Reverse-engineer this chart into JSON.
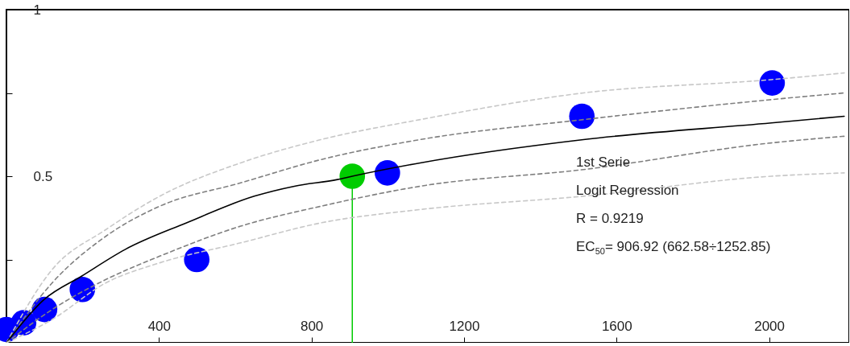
{
  "chart_data": {
    "type": "line",
    "xlim": [
      0,
      2210
    ],
    "xticks": [
      400,
      800,
      1200,
      1600,
      2000
    ],
    "ylim": [
      0,
      1
    ],
    "yticks": [
      {
        "value": 0.25,
        "label": null
      },
      0.5,
      {
        "value": 0.75,
        "label": null
      },
      1
    ],
    "grid": false,
    "annotations": [
      "1st Serie",
      "Logit Regression",
      "R = 0.9219",
      "EC$_{50}$= 906.92 (662.58÷1252.85)"
    ],
    "series": [
      {
        "type": "scatter",
        "marker": "circle",
        "color": "#0000ff",
        "x": [
          0,
          45,
          100,
          199,
          499,
          999,
          1509,
          2008
        ],
        "values": [
          0.04,
          0.06,
          0.1,
          0.16,
          0.25,
          0.51,
          0.68,
          0.78
        ]
      },
      {
        "type": "lollipop",
        "marker": "circle",
        "color": "#00cc00",
        "x": [
          906.92
        ],
        "values": [
          0.5
        ]
      },
      {
        "color": "#c8c8c8",
        "line_style": "dashed",
        "x": [
          0,
          120,
          261,
          402,
          614,
          825,
          1085,
          1513,
          2006,
          2197
        ],
        "values": [
          0,
          0.22,
          0.34,
          0.44,
          0.54,
          0.61,
          0.67,
          0.75,
          0.79,
          0.81
        ]
      },
      {
        "color": "#808080",
        "line_style": "dashed",
        "x": [
          0,
          120,
          261,
          402,
          614,
          825,
          1085,
          1513,
          2006,
          2197
        ],
        "values": [
          0,
          0.18,
          0.32,
          0.41,
          0.48,
          0.55,
          0.61,
          0.67,
          0.73,
          0.75
        ]
      },
      {
        "color": "#000000",
        "line_style": "solid",
        "x": [
          0,
          99,
          197,
          311,
          472,
          650,
          755,
          868,
          907,
          1085,
          1513,
          2006,
          2197
        ],
        "values": [
          0,
          0.13,
          0.2,
          0.28,
          0.36,
          0.44,
          0.47,
          0.49,
          0.5,
          0.54,
          0.61,
          0.66,
          0.68
        ]
      },
      {
        "color": "#808080",
        "line_style": "dashed",
        "x": [
          0,
          120,
          261,
          402,
          614,
          825,
          1085,
          1513,
          2006,
          2197
        ],
        "values": [
          0,
          0.1,
          0.19,
          0.26,
          0.35,
          0.41,
          0.47,
          0.52,
          0.6,
          0.62
        ]
      },
      {
        "color": "#c8c8c8",
        "line_style": "dashed",
        "x": [
          0,
          120,
          261,
          402,
          614,
          825,
          1085,
          1513,
          2006,
          2197
        ],
        "values": [
          0,
          0.07,
          0.18,
          0.24,
          0.3,
          0.36,
          0.4,
          0.44,
          0.5,
          0.51
        ]
      }
    ]
  }
}
